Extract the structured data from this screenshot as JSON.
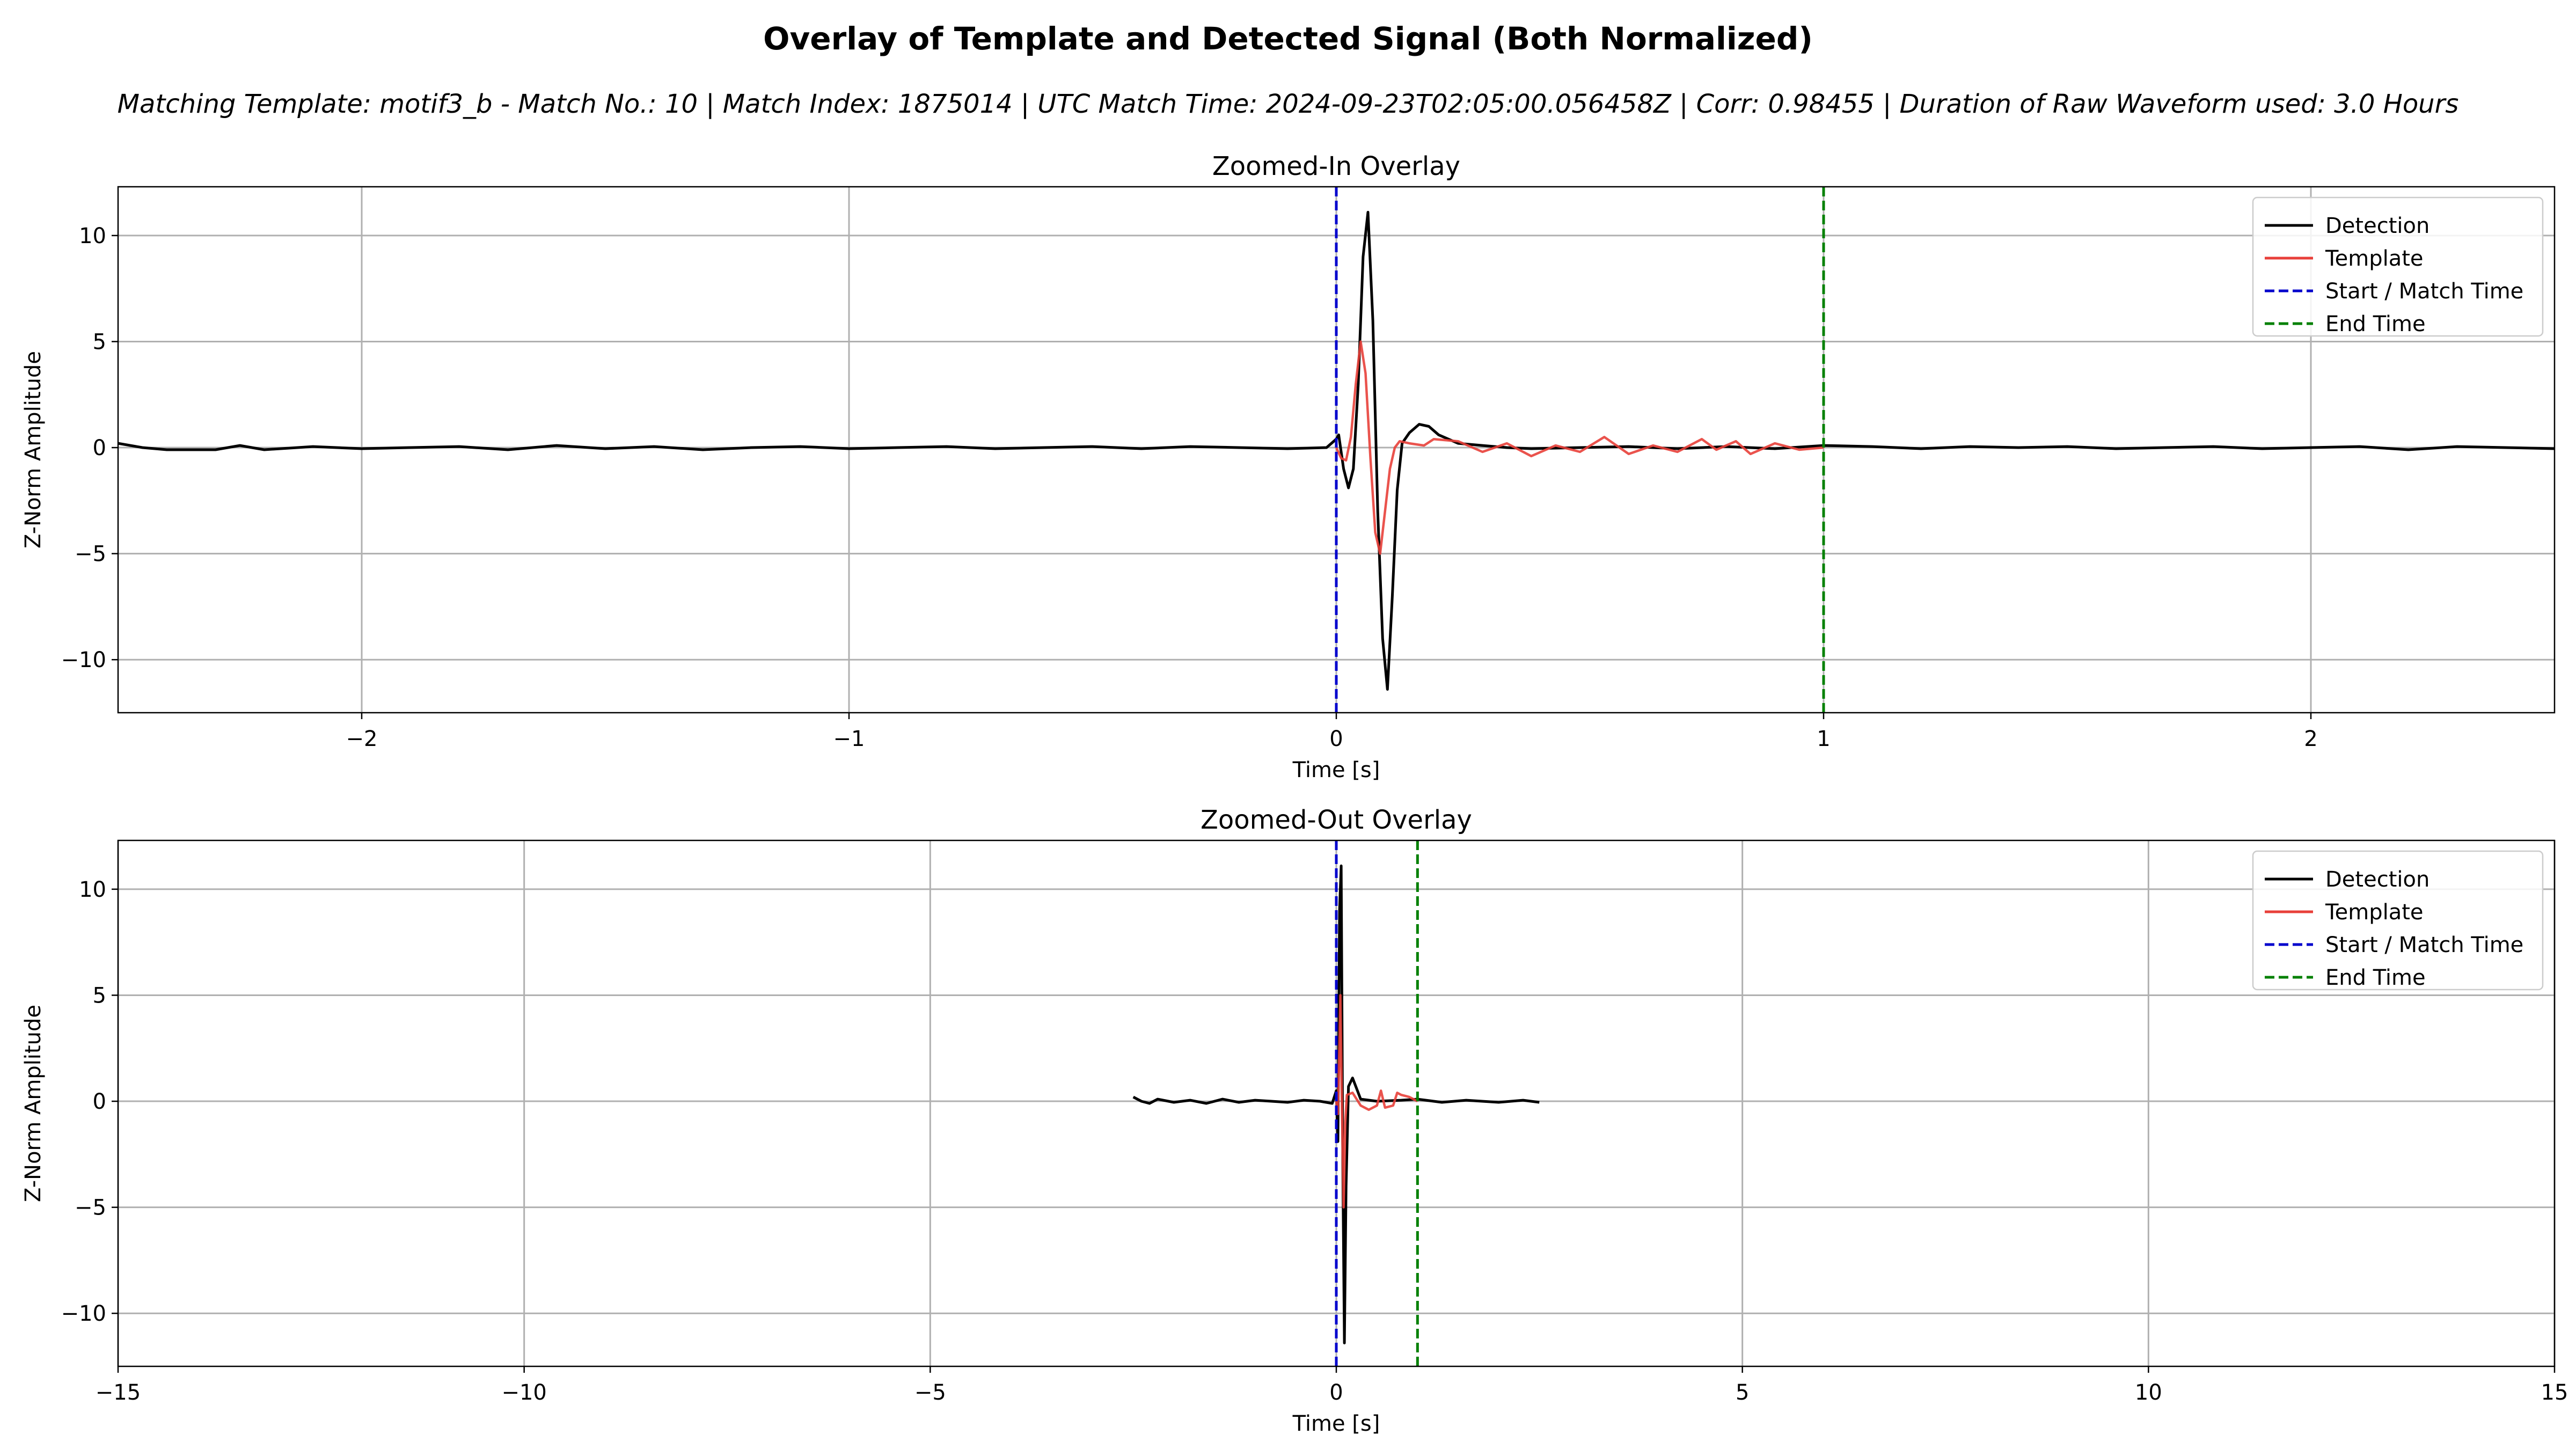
{
  "suptitle": "Overlay of Template and Detected Signal (Both Normalized)",
  "subtitle": "Matching Template: motif3_b - Match No.: 10 | Match Index: 1875014 | UTC Match Time: 2024-09-23T02:05:00.056458Z | Corr: 0.98455 | Duration of Raw Waveform used: 3.0 Hours",
  "chart_data": [
    {
      "type": "line",
      "title": "Zoomed-In Overlay",
      "xlabel": "Time [s]",
      "ylabel": "Z-Norm Amplitude",
      "xlim": [
        -2.5,
        2.5
      ],
      "ylim": [
        -12.5,
        12.3
      ],
      "xticks": [
        -2,
        -1,
        0,
        1,
        2
      ],
      "xtick_labels": [
        "−2",
        "−1",
        "0",
        "1",
        "2"
      ],
      "yticks": [
        -10,
        -5,
        0,
        5,
        10
      ],
      "ytick_labels": [
        "−10",
        "−5",
        "0",
        "5",
        "10"
      ],
      "grid": true,
      "legend_position": "upper right",
      "legend": [
        "Detection",
        "Template",
        "Start / Match Time",
        "End Time"
      ],
      "series": [
        {
          "name": "Detection",
          "color": "#000000",
          "x": [
            -2.5,
            -2.45,
            -2.4,
            -2.3,
            -2.25,
            -2.2,
            -2.1,
            -2.0,
            -1.9,
            -1.8,
            -1.7,
            -1.6,
            -1.5,
            -1.4,
            -1.3,
            -1.2,
            -1.1,
            -1.0,
            -0.9,
            -0.8,
            -0.7,
            -0.6,
            -0.5,
            -0.4,
            -0.3,
            -0.2,
            -0.1,
            -0.02,
            0.0,
            0.005,
            0.015,
            0.025,
            0.035,
            0.045,
            0.055,
            0.065,
            0.075,
            0.085,
            0.095,
            0.105,
            0.115,
            0.125,
            0.135,
            0.15,
            0.17,
            0.19,
            0.21,
            0.25,
            0.3,
            0.35,
            0.4,
            0.5,
            0.6,
            0.7,
            0.8,
            0.9,
            1.0,
            1.1,
            1.2,
            1.3,
            1.4,
            1.5,
            1.6,
            1.7,
            1.8,
            1.9,
            2.0,
            2.1,
            2.2,
            2.3,
            2.4,
            2.5
          ],
          "y": [
            0.2,
            0.0,
            -0.1,
            -0.1,
            0.1,
            -0.1,
            0.05,
            -0.05,
            0.0,
            0.05,
            -0.1,
            0.1,
            -0.05,
            0.05,
            -0.1,
            0.0,
            0.05,
            -0.05,
            0.0,
            0.05,
            -0.05,
            0.0,
            0.05,
            -0.05,
            0.05,
            0.0,
            -0.05,
            0.0,
            0.4,
            0.6,
            -1.0,
            -1.9,
            -1.0,
            3.0,
            9.0,
            11.1,
            6.0,
            -3.0,
            -9.0,
            -11.4,
            -7.0,
            -2.0,
            0.2,
            0.7,
            1.1,
            1.0,
            0.6,
            0.2,
            0.1,
            0.0,
            -0.05,
            0.0,
            0.05,
            -0.05,
            0.05,
            -0.05,
            0.1,
            0.05,
            -0.05,
            0.05,
            0.0,
            0.05,
            -0.05,
            0.0,
            0.05,
            -0.05,
            0.0,
            0.05,
            -0.1,
            0.05,
            0.0,
            -0.05
          ]
        },
        {
          "name": "Template",
          "color": "#e8403a",
          "x": [
            0.0,
            0.01,
            0.02,
            0.03,
            0.04,
            0.05,
            0.06,
            0.07,
            0.08,
            0.09,
            0.1,
            0.11,
            0.12,
            0.13,
            0.15,
            0.18,
            0.2,
            0.25,
            0.3,
            0.35,
            0.4,
            0.45,
            0.5,
            0.55,
            0.6,
            0.65,
            0.7,
            0.75,
            0.78,
            0.82,
            0.85,
            0.9,
            0.95,
            1.0
          ],
          "y": [
            0.0,
            -0.5,
            -0.6,
            0.5,
            3.0,
            5.0,
            3.5,
            -0.5,
            -4.0,
            -5.0,
            -3.0,
            -1.0,
            0.0,
            0.3,
            0.2,
            0.1,
            0.4,
            0.3,
            -0.2,
            0.2,
            -0.4,
            0.1,
            -0.2,
            0.5,
            -0.3,
            0.1,
            -0.2,
            0.4,
            -0.1,
            0.3,
            -0.3,
            0.2,
            -0.1,
            0.0
          ]
        }
      ],
      "vlines": [
        {
          "name": "Start / Match Time",
          "x": 0,
          "color": "#0000cc",
          "style": "dashed"
        },
        {
          "name": "End Time",
          "x": 1,
          "color": "#008000",
          "style": "dashed"
        }
      ]
    },
    {
      "type": "line",
      "title": "Zoomed-Out Overlay",
      "xlabel": "Time [s]",
      "ylabel": "Z-Norm Amplitude",
      "xlim": [
        -15,
        15
      ],
      "ylim": [
        -12.5,
        12.3
      ],
      "xticks": [
        -15,
        -10,
        -5,
        0,
        5,
        10,
        15
      ],
      "xtick_labels": [
        "−15",
        "−10",
        "−5",
        "0",
        "5",
        "10",
        "15"
      ],
      "yticks": [
        -10,
        -5,
        0,
        5,
        10
      ],
      "ytick_labels": [
        "−10",
        "−5",
        "0",
        "5",
        "10"
      ],
      "grid": true,
      "legend_position": "upper right",
      "legend": [
        "Detection",
        "Template",
        "Start / Match Time",
        "End Time"
      ],
      "series": [
        {
          "name": "Detection",
          "color": "#000000",
          "x": [
            -2.5,
            -2.4,
            -2.3,
            -2.2,
            -2.0,
            -1.8,
            -1.6,
            -1.4,
            -1.2,
            -1.0,
            -0.8,
            -0.6,
            -0.4,
            -0.2,
            -0.05,
            0.0,
            0.02,
            0.04,
            0.06,
            0.08,
            0.1,
            0.12,
            0.15,
            0.2,
            0.3,
            0.5,
            0.8,
            1.0,
            1.3,
            1.6,
            2.0,
            2.3,
            2.5
          ],
          "y": [
            0.2,
            0.0,
            -0.1,
            0.1,
            -0.05,
            0.05,
            -0.1,
            0.1,
            -0.05,
            0.05,
            0.0,
            -0.05,
            0.05,
            0.0,
            -0.1,
            0.5,
            -1.9,
            9.0,
            11.1,
            -3.0,
            -11.4,
            -4.0,
            0.7,
            1.1,
            0.1,
            0.0,
            0.05,
            0.1,
            -0.05,
            0.05,
            -0.05,
            0.05,
            -0.05
          ]
        },
        {
          "name": "Template",
          "color": "#e8403a",
          "x": [
            0.0,
            0.02,
            0.04,
            0.05,
            0.07,
            0.09,
            0.11,
            0.13,
            0.2,
            0.3,
            0.4,
            0.5,
            0.55,
            0.6,
            0.7,
            0.75,
            0.8,
            0.9,
            1.0
          ],
          "y": [
            0.0,
            -0.6,
            3.0,
            5.0,
            -0.5,
            -5.0,
            -1.0,
            0.3,
            0.4,
            -0.2,
            -0.4,
            -0.2,
            0.5,
            -0.3,
            -0.2,
            0.4,
            0.3,
            0.2,
            0.0
          ]
        }
      ],
      "vlines": [
        {
          "name": "Start / Match Time",
          "x": 0,
          "color": "#0000cc",
          "style": "dashed"
        },
        {
          "name": "End Time",
          "x": 1,
          "color": "#008000",
          "style": "dashed"
        }
      ]
    }
  ]
}
